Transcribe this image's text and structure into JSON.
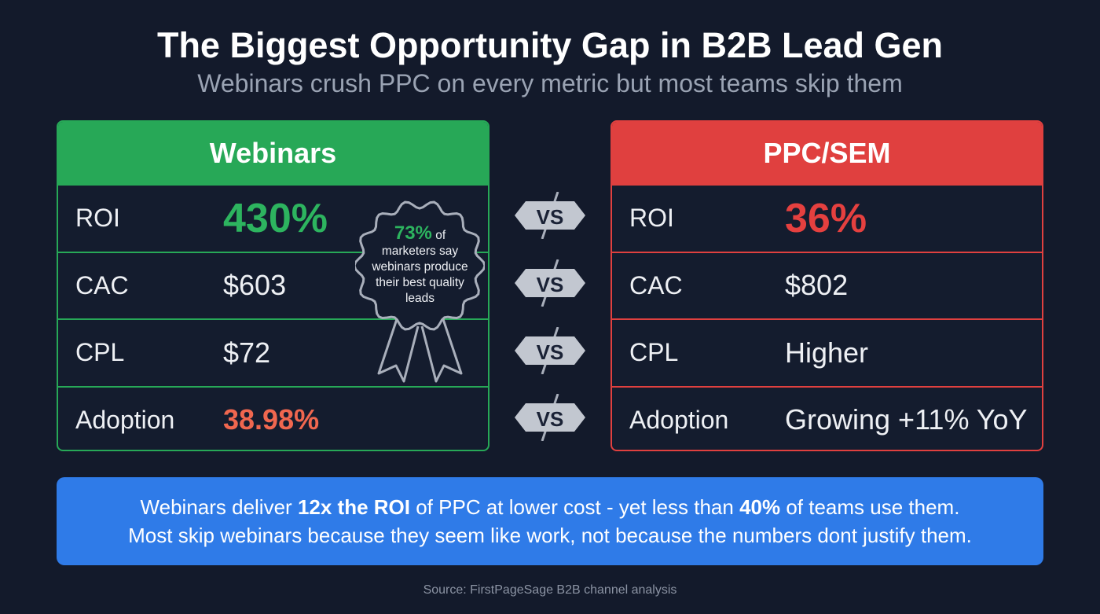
{
  "title": "The Biggest Opportunity Gap in B2B Lead Gen",
  "subtitle": "Webinars crush PPC on every metric but most teams skip them",
  "webinars": {
    "header": "Webinars",
    "rows": [
      {
        "label": "ROI",
        "value": "430%"
      },
      {
        "label": "CAC",
        "value": "$603"
      },
      {
        "label": "CPL",
        "value": "$72"
      },
      {
        "label": "Adoption",
        "value": "38.98%"
      }
    ]
  },
  "ppc": {
    "header": "PPC/SEM",
    "rows": [
      {
        "label": "ROI",
        "value": "36%"
      },
      {
        "label": "CAC",
        "value": "$802"
      },
      {
        "label": "CPL",
        "value": "Higher"
      },
      {
        "label": "Adoption",
        "value": "Growing +11% YoY"
      }
    ]
  },
  "vs_label": "VS",
  "badge": {
    "stat": "73%",
    "text1": " of",
    "text2": "marketers say webinars produce their best quality leads"
  },
  "banner": {
    "line1": {
      "a": "Webinars deliver ",
      "b": "12x the ROI",
      "c": " of PPC at lower cost - yet less than ",
      "d": "40%",
      "e": " of teams use them."
    },
    "line2": "Most skip webinars because they seem like work, not because the numbers dont justify them."
  },
  "source": "Source: FirstPageSage B2B channel analysis",
  "colors": {
    "background": "#131a2b",
    "green": "#27a857",
    "red": "#e0403f",
    "blue": "#2f7be8"
  }
}
